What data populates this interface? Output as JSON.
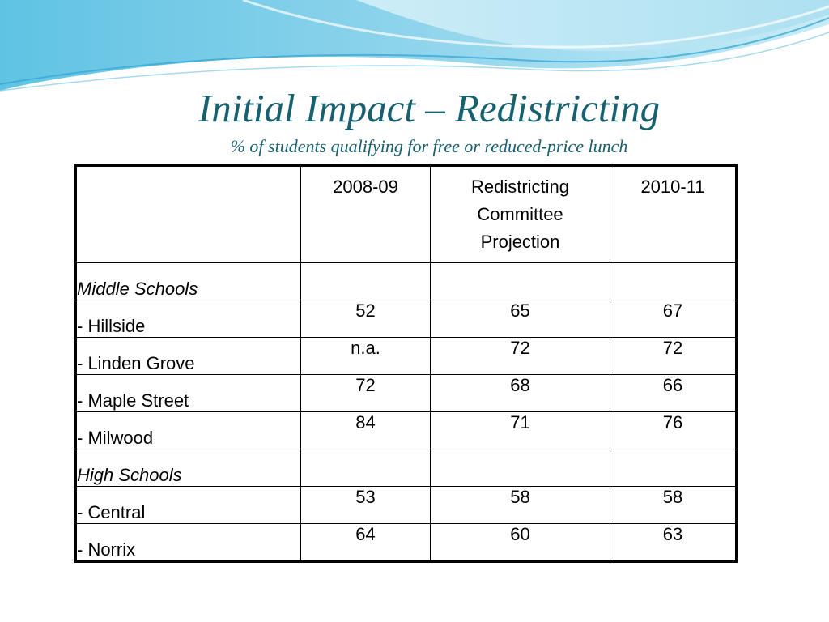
{
  "slide": {
    "title": "Initial Impact – Redistricting",
    "subtitle": "% of students qualifying for free or reduced-price lunch",
    "title_color": "#17606f",
    "wave_colors": [
      "#9fd9ee",
      "#c6ecf5",
      "#4fb8da"
    ]
  },
  "table": {
    "headers": [
      "",
      "2008-09",
      "Redistricting Committee Projection",
      "2010-11"
    ],
    "rows": [
      {
        "label": "Middle Schools",
        "section": true,
        "values": [
          "",
          "",
          ""
        ]
      },
      {
        "label": "- Hillside",
        "section": false,
        "values": [
          "52",
          "65",
          "67"
        ]
      },
      {
        "label": "- Linden Grove",
        "section": false,
        "values": [
          "n.a.",
          "72",
          "72"
        ]
      },
      {
        "label": "- Maple Street",
        "section": false,
        "values": [
          "72",
          "68",
          "66"
        ]
      },
      {
        "label": "- Milwood",
        "section": false,
        "values": [
          "84",
          "71",
          "76"
        ]
      },
      {
        "label": "High Schools",
        "section": true,
        "values": [
          "",
          "",
          ""
        ]
      },
      {
        "label": "- Central",
        "section": false,
        "values": [
          "53",
          "58",
          "58"
        ]
      },
      {
        "label": "- Norrix",
        "section": false,
        "values": [
          "64",
          "60",
          "63"
        ]
      }
    ]
  }
}
